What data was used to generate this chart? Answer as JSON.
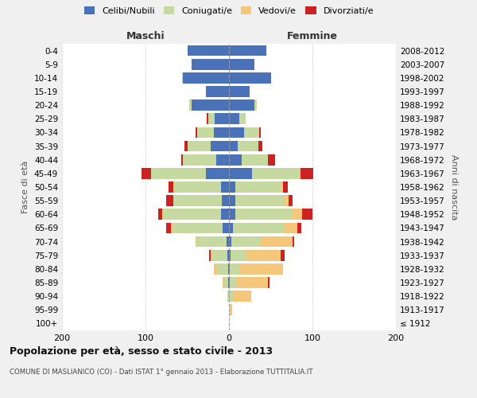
{
  "age_groups": [
    "100+",
    "95-99",
    "90-94",
    "85-89",
    "80-84",
    "75-79",
    "70-74",
    "65-69",
    "60-64",
    "55-59",
    "50-54",
    "45-49",
    "40-44",
    "35-39",
    "30-34",
    "25-29",
    "20-24",
    "15-19",
    "10-14",
    "5-9",
    "0-4"
  ],
  "birth_years": [
    "≤ 1912",
    "1913-1917",
    "1918-1922",
    "1923-1927",
    "1928-1932",
    "1933-1937",
    "1938-1942",
    "1943-1947",
    "1948-1952",
    "1953-1957",
    "1958-1962",
    "1963-1967",
    "1968-1972",
    "1973-1977",
    "1978-1982",
    "1983-1987",
    "1988-1992",
    "1993-1997",
    "1998-2002",
    "2003-2007",
    "2008-2012"
  ],
  "maschi": {
    "celibi": [
      0,
      0,
      0,
      1,
      1,
      2,
      3,
      8,
      10,
      9,
      10,
      28,
      15,
      22,
      18,
      17,
      45,
      28,
      55,
      45,
      50
    ],
    "coniugati": [
      0,
      0,
      2,
      5,
      12,
      18,
      35,
      60,
      68,
      58,
      55,
      65,
      40,
      28,
      20,
      8,
      3,
      0,
      1,
      0,
      0
    ],
    "vedovi": [
      0,
      0,
      0,
      2,
      5,
      2,
      2,
      2,
      2,
      0,
      2,
      0,
      0,
      0,
      0,
      0,
      0,
      0,
      0,
      0,
      0
    ],
    "divorziati": [
      0,
      0,
      0,
      0,
      0,
      2,
      0,
      5,
      5,
      8,
      5,
      12,
      2,
      3,
      2,
      2,
      0,
      0,
      0,
      0,
      0
    ]
  },
  "femmine": {
    "nubili": [
      0,
      0,
      0,
      1,
      1,
      2,
      3,
      5,
      8,
      8,
      8,
      28,
      15,
      10,
      18,
      12,
      30,
      25,
      50,
      30,
      45
    ],
    "coniugate": [
      0,
      2,
      5,
      8,
      12,
      18,
      35,
      62,
      68,
      58,
      55,
      58,
      32,
      25,
      18,
      8,
      3,
      0,
      0,
      0,
      0
    ],
    "vedove": [
      0,
      2,
      22,
      38,
      52,
      42,
      38,
      15,
      12,
      5,
      2,
      0,
      0,
      0,
      0,
      0,
      0,
      0,
      0,
      0,
      0
    ],
    "divorziate": [
      0,
      0,
      0,
      2,
      0,
      5,
      2,
      5,
      12,
      5,
      5,
      15,
      8,
      5,
      2,
      0,
      0,
      0,
      0,
      0,
      0
    ]
  },
  "colors": {
    "celibi_nubili": "#4a72b8",
    "coniugati_e": "#c5d9a0",
    "vedovi_e": "#f5c77a",
    "divorziati_e": "#cc2222"
  },
  "title": "Popolazione per età, sesso e stato civile - 2013",
  "subtitle": "COMUNE DI MASLIANICO (CO) - Dati ISTAT 1° gennaio 2013 - Elaborazione TUTTITALIA.IT",
  "xlabel_maschi": "Maschi",
  "xlabel_femmine": "Femmine",
  "ylabel_left": "Fasce di età",
  "ylabel_right": "Anni di nascita",
  "xlim": 200,
  "bg_color": "#f0f0f0",
  "plot_bg_color": "#ffffff",
  "grid_color": "#cccccc"
}
